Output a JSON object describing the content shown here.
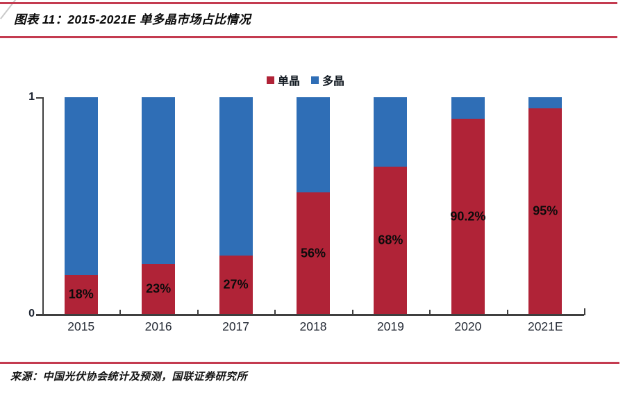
{
  "header": {
    "title": "图表 11：2015-2021E 单多晶市场占比情况",
    "rule_color": "#c43b50"
  },
  "footer": {
    "source": "来源：中国光伏协会统计及预测，国联证券研究所"
  },
  "chart_data": {
    "type": "bar",
    "stacked": true,
    "title": "2015-2021E 单多晶市场占比情况",
    "categories": [
      "2015",
      "2016",
      "2017",
      "2018",
      "2019",
      "2020",
      "2021E"
    ],
    "series": [
      {
        "name": "单晶",
        "key": "mono",
        "color": "#b02337",
        "values": [
          0.18,
          0.23,
          0.27,
          0.56,
          0.68,
          0.902,
          0.95
        ],
        "data_labels": [
          "18%",
          "23%",
          "27%",
          "56%",
          "68%",
          "90.2%",
          "95%"
        ]
      },
      {
        "name": "多晶",
        "key": "poly",
        "color": "#2f6eb6",
        "values": [
          0.82,
          0.77,
          0.73,
          0.44,
          0.32,
          0.098,
          0.05
        ],
        "data_labels": [
          "",
          "",
          "",
          "",
          "",
          "",
          ""
        ]
      }
    ],
    "ylim": [
      0,
      1
    ],
    "yticks": [
      {
        "value": 0,
        "label": "0"
      },
      {
        "value": 1,
        "label": "1"
      }
    ],
    "legend_position": "top",
    "grid": false,
    "axis_color": "#3f3f3f"
  }
}
